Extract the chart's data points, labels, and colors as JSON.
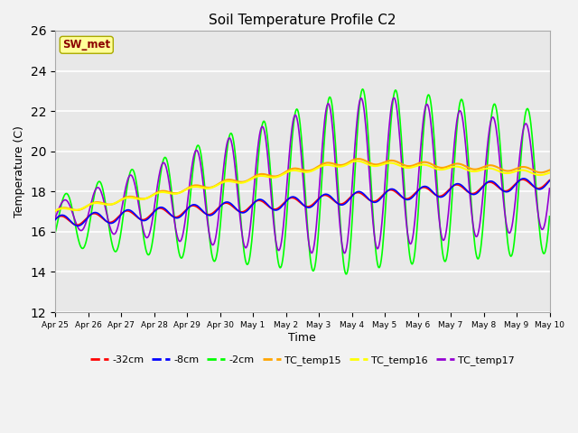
{
  "title": "Soil Temperature Profile C2",
  "xlabel": "Time",
  "ylabel": "Temperature (C)",
  "ylim": [
    12,
    26
  ],
  "annotation": "SW_met",
  "annotation_color": "#8B0000",
  "annotation_bg": "#FFFF99",
  "series": {
    "neg32cm": {
      "label": "-32cm",
      "color": "#FF0000",
      "linewidth": 1.2
    },
    "neg8cm": {
      "label": "-8cm",
      "color": "#0000FF",
      "linewidth": 1.2
    },
    "neg2cm": {
      "label": "-2cm",
      "color": "#00FF00",
      "linewidth": 1.2
    },
    "tc_temp15": {
      "label": "TC_temp15",
      "color": "#FFA500",
      "linewidth": 1.5
    },
    "tc_temp16": {
      "label": "TC_temp16",
      "color": "#FFFF00",
      "linewidth": 1.5
    },
    "tc_temp17": {
      "label": "TC_temp17",
      "color": "#9400D3",
      "linewidth": 1.2
    }
  },
  "xtick_labels": [
    "Apr 25",
    "Apr 26",
    "Apr 27",
    "Apr 28",
    "Apr 29",
    "Apr 30",
    "May 1",
    "May 2",
    "May 3",
    "May 4",
    "May 5",
    "May 6",
    "May 7",
    "May 8",
    "May 9",
    "May 10"
  ],
  "background_color": "#E8E8E8",
  "grid_color": "#FFFFFF",
  "figsize": [
    6.4,
    4.8
  ],
  "dpi": 100
}
